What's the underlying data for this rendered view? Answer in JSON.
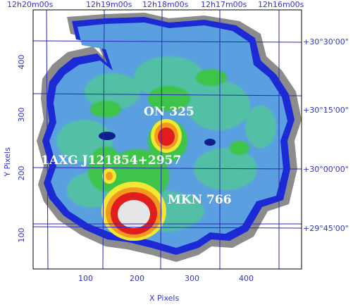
{
  "colors": {
    "frame": "#000000",
    "grid": "#2a2ab8",
    "axis_text": "#3333cc",
    "bg_halo": "#8c8c8c",
    "edge": "#1c2ad6",
    "body": "#5aa0e0",
    "body_mid": "#53c0a6",
    "green": "#3cc44a",
    "yellow": "#f2e733",
    "orange": "#f29a1e",
    "red": "#e21d1d",
    "core": "#e6e6e6",
    "dark_blob": "#0f1f8c",
    "label": "#ffffff"
  },
  "axes": {
    "x_title": "X Pixels",
    "y_title": "Y Pixels",
    "x_ticks": [
      "100",
      "200",
      "300",
      "400"
    ],
    "y_ticks": [
      "100",
      "200",
      "300",
      "400"
    ]
  },
  "coords": {
    "ra_labels": [
      "12h20m00s",
      "12h19m00s",
      "12h18m00s",
      "12h17m00s",
      "12h16m00s"
    ],
    "dec_labels": [
      "+30°30'00\"",
      "+30°15'00\"",
      "+30°00'00\"",
      "+29°45'00\""
    ]
  },
  "sources": {
    "on325": "ON 325",
    "axg": "1AXG J121854+2957",
    "mkn766": "MKN 766"
  }
}
